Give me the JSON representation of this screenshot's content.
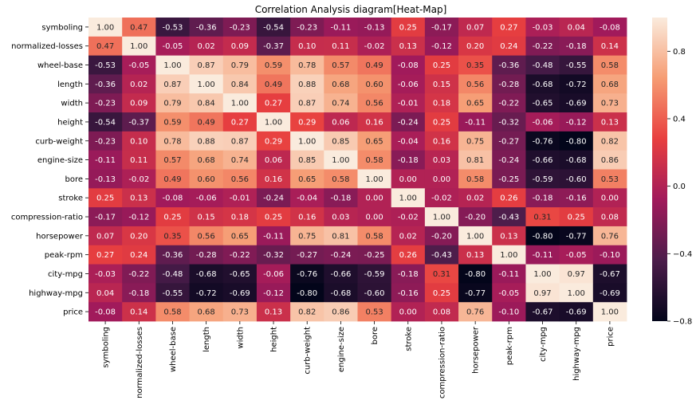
{
  "chart_data": {
    "type": "heatmap",
    "title": "Correlation Analysis diagram[Heat-Map]",
    "variables": [
      "symboling",
      "normalized-losses",
      "wheel-base",
      "length",
      "width",
      "height",
      "curb-weight",
      "engine-size",
      "bore",
      "stroke",
      "compression-ratio",
      "horsepower",
      "peak-rpm",
      "city-mpg",
      "highway-mpg",
      "price"
    ],
    "matrix": [
      [
        1.0,
        0.47,
        -0.53,
        -0.36,
        -0.23,
        -0.54,
        -0.23,
        -0.11,
        -0.13,
        0.25,
        -0.17,
        0.07,
        0.27,
        -0.03,
        0.04,
        -0.08
      ],
      [
        0.47,
        1.0,
        -0.05,
        0.02,
        0.09,
        -0.37,
        0.1,
        0.11,
        -0.02,
        0.13,
        -0.12,
        0.2,
        0.24,
        -0.22,
        -0.18,
        0.14
      ],
      [
        -0.53,
        -0.05,
        1.0,
        0.87,
        0.79,
        0.59,
        0.78,
        0.57,
        0.49,
        -0.08,
        0.25,
        0.35,
        -0.36,
        -0.48,
        -0.55,
        0.58
      ],
      [
        -0.36,
        0.02,
        0.87,
        1.0,
        0.84,
        0.49,
        0.88,
        0.68,
        0.6,
        -0.06,
        0.15,
        0.56,
        -0.28,
        -0.68,
        -0.72,
        0.68
      ],
      [
        -0.23,
        0.09,
        0.79,
        0.84,
        1.0,
        0.27,
        0.87,
        0.74,
        0.56,
        -0.01,
        0.18,
        0.65,
        -0.22,
        -0.65,
        -0.69,
        0.73
      ],
      [
        -0.54,
        -0.37,
        0.59,
        0.49,
        0.27,
        1.0,
        0.29,
        0.06,
        0.16,
        -0.24,
        0.25,
        -0.11,
        -0.32,
        -0.06,
        -0.12,
        0.13
      ],
      [
        -0.23,
        0.1,
        0.78,
        0.88,
        0.87,
        0.29,
        1.0,
        0.85,
        0.65,
        -0.04,
        0.16,
        0.75,
        -0.27,
        -0.76,
        -0.8,
        0.82
      ],
      [
        -0.11,
        0.11,
        0.57,
        0.68,
        0.74,
        0.06,
        0.85,
        1.0,
        0.58,
        -0.18,
        0.03,
        0.81,
        -0.24,
        -0.66,
        -0.68,
        0.86
      ],
      [
        -0.13,
        -0.02,
        0.49,
        0.6,
        0.56,
        0.16,
        0.65,
        0.58,
        1.0,
        -0.0,
        -0.0,
        0.58,
        -0.25,
        -0.59,
        -0.6,
        0.53
      ],
      [
        0.25,
        0.13,
        -0.08,
        -0.06,
        -0.01,
        -0.24,
        -0.04,
        -0.18,
        -0.0,
        1.0,
        -0.02,
        0.02,
        0.26,
        -0.18,
        -0.16,
        -0.0
      ],
      [
        -0.17,
        -0.12,
        0.25,
        0.15,
        0.18,
        0.25,
        0.16,
        0.03,
        -0.0,
        -0.02,
        1.0,
        -0.2,
        -0.43,
        0.31,
        0.25,
        0.08
      ],
      [
        0.07,
        0.2,
        0.35,
        0.56,
        0.65,
        -0.11,
        0.75,
        0.81,
        0.58,
        0.02,
        -0.2,
        1.0,
        0.13,
        -0.8,
        -0.77,
        0.76
      ],
      [
        0.27,
        0.24,
        -0.36,
        -0.28,
        -0.22,
        -0.32,
        -0.27,
        -0.24,
        -0.25,
        0.26,
        -0.43,
        0.13,
        1.0,
        -0.11,
        -0.05,
        -0.1
      ],
      [
        -0.03,
        -0.22,
        -0.48,
        -0.68,
        -0.65,
        -0.06,
        -0.76,
        -0.66,
        -0.59,
        -0.18,
        0.31,
        -0.8,
        -0.11,
        1.0,
        0.97,
        -0.67
      ],
      [
        0.04,
        -0.18,
        -0.55,
        -0.72,
        -0.69,
        -0.12,
        -0.8,
        -0.68,
        -0.6,
        -0.16,
        0.25,
        -0.77,
        -0.05,
        0.97,
        1.0,
        -0.69
      ],
      [
        -0.08,
        0.14,
        0.58,
        0.68,
        0.73,
        0.13,
        0.82,
        0.86,
        0.53,
        -0.0,
        0.08,
        0.76,
        -0.1,
        -0.67,
        -0.69,
        1.0
      ]
    ],
    "colorbar": {
      "vmin": -0.8,
      "vmax": 1.0,
      "ticks": [
        -0.8,
        -0.4,
        0.0,
        0.4,
        0.8
      ],
      "tick_labels": [
        "−0.8",
        "−0.4",
        "0.0",
        "0.4",
        "0.8"
      ]
    },
    "colormap": [
      "#03051a",
      "#4c1d4b",
      "#a11a5b",
      "#e83f3f",
      "#f69c73",
      "#faebdd"
    ],
    "grid": false
  }
}
